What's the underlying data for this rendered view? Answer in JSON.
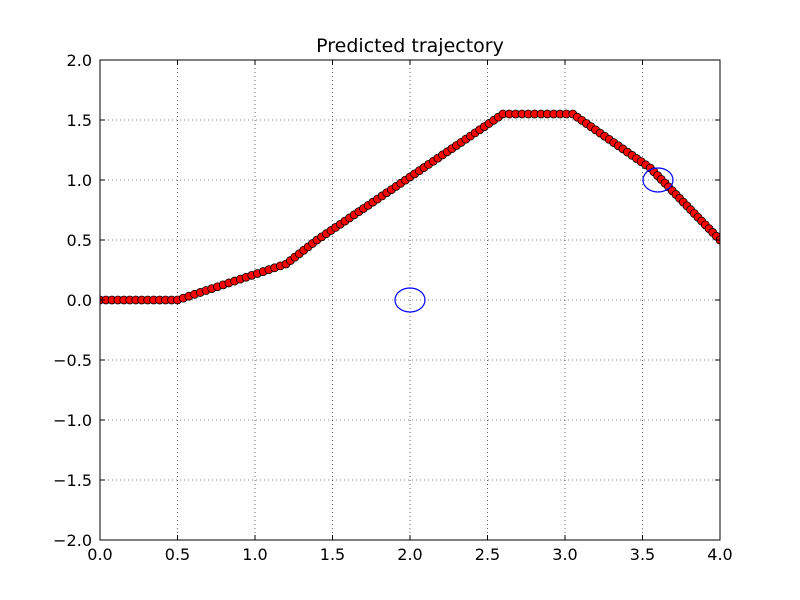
{
  "chart_data": {
    "type": "scatter",
    "title": "Predicted trajectory",
    "xlabel": "",
    "ylabel": "",
    "xlim": [
      0.0,
      4.0
    ],
    "ylim": [
      -2.0,
      2.0
    ],
    "grid": true,
    "x_ticks": [
      0.0,
      0.5,
      1.0,
      1.5,
      2.0,
      2.5,
      3.0,
      3.5,
      4.0
    ],
    "x_tick_labels": [
      "0.0",
      "0.5",
      "1.0",
      "1.5",
      "2.0",
      "2.5",
      "3.0",
      "3.5",
      "4.0"
    ],
    "y_ticks": [
      -2.0,
      -1.5,
      -1.0,
      -0.5,
      0.0,
      0.5,
      1.0,
      1.5,
      2.0
    ],
    "y_tick_labels": [
      "−2.0",
      "−1.5",
      "−1.0",
      "−0.5",
      "0.0",
      "0.5",
      "1.0",
      "1.5",
      "2.0"
    ],
    "series": [
      {
        "marker": "filled-circle",
        "color": "#ff0000",
        "edge_color": "#000000",
        "path_vertices": [
          [
            0.0,
            0.0
          ],
          [
            0.5,
            0.0
          ],
          [
            1.2,
            0.3
          ],
          [
            1.4,
            0.5
          ],
          [
            2.6,
            1.55
          ],
          [
            3.05,
            1.55
          ],
          [
            3.55,
            1.1
          ],
          [
            4.0,
            0.5
          ]
        ],
        "point_spacing": 0.04
      },
      {
        "marker": "open-circle",
        "color": "#0000ff",
        "points": [
          [
            2.0,
            0.0
          ],
          [
            3.6,
            1.0
          ]
        ]
      }
    ]
  }
}
